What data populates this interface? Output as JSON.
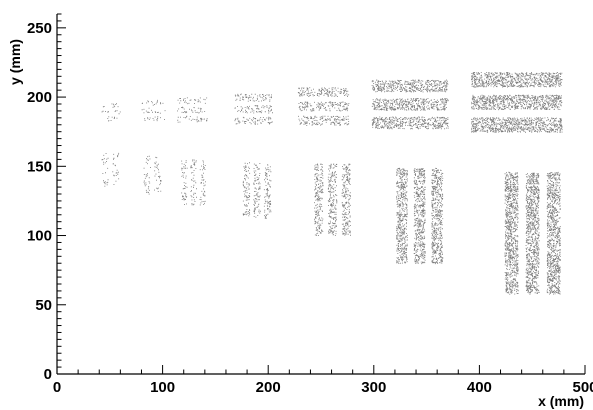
{
  "chart_data": {
    "type": "scatter",
    "title": "",
    "xlabel": "x (mm)",
    "ylabel": "y (mm)",
    "xlim": [
      0,
      500
    ],
    "ylim": [
      0,
      260
    ],
    "x_ticks": [
      0,
      100,
      200,
      300,
      400,
      500
    ],
    "y_ticks": [
      0,
      50,
      100,
      150,
      200,
      250
    ],
    "grid": false,
    "legend": "none",
    "point_color": "#7a7a7a",
    "clusters": [
      {
        "x": [
          40,
          60
        ],
        "y": [
          182,
          197
        ],
        "rows": 3,
        "density": 0.18
      },
      {
        "x": [
          80,
          102
        ],
        "y": [
          182,
          199
        ],
        "rows": 3,
        "density": 0.22
      },
      {
        "x": [
          113,
          142
        ],
        "y": [
          181,
          201
        ],
        "rows": 3,
        "density": 0.28
      },
      {
        "x": [
          168,
          204
        ],
        "y": [
          179,
          204
        ],
        "rows": 3,
        "density": 0.4
      },
      {
        "x": [
          228,
          276
        ],
        "y": [
          178,
          209
        ],
        "rows": 3,
        "density": 0.55
      },
      {
        "x": [
          298,
          370
        ],
        "y": [
          175,
          215
        ],
        "rows": 3,
        "density": 0.8
      },
      {
        "x": [
          392,
          478
        ],
        "y": [
          172,
          221
        ],
        "rows": 3,
        "density": 0.95
      },
      {
        "x": [
          40,
          60
        ],
        "y": [
          136,
          160
        ],
        "cols": 2,
        "density": 0.18
      },
      {
        "x": [
          80,
          100
        ],
        "y": [
          130,
          158
        ],
        "cols": 2,
        "density": 0.22
      },
      {
        "x": [
          116,
          142
        ],
        "y": [
          122,
          155
        ],
        "cols": 3,
        "density": 0.3
      },
      {
        "x": [
          174,
          204
        ],
        "y": [
          112,
          153
        ],
        "cols": 3,
        "density": 0.42
      },
      {
        "x": [
          241,
          280
        ],
        "y": [
          100,
          152
        ],
        "cols": 3,
        "density": 0.58
      },
      {
        "x": [
          318,
          368
        ],
        "y": [
          80,
          149
        ],
        "cols": 3,
        "density": 0.82
      },
      {
        "x": [
          420,
          480
        ],
        "y": [
          58,
          146
        ],
        "cols": 3,
        "density": 0.95
      }
    ]
  }
}
